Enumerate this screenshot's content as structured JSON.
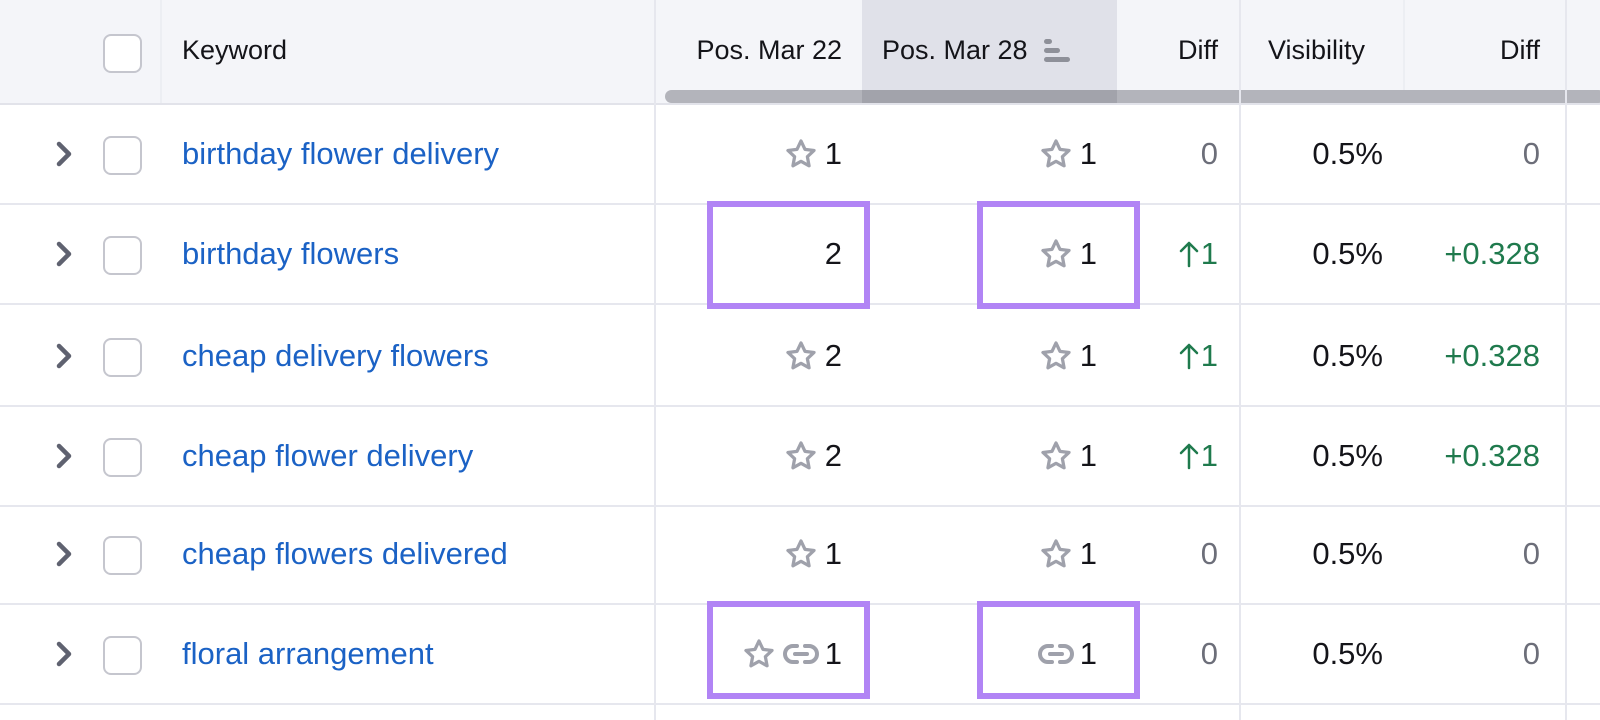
{
  "header": {
    "keyword": "Keyword",
    "pos_mar22": "Pos. Mar 22",
    "pos_mar28": "Pos. Mar 28",
    "diff": "Diff",
    "visibility": "Visibility",
    "vis_diff": "Diff",
    "sorted_column": "Pos. Mar 28"
  },
  "colors": {
    "link": "#1b62c5",
    "positive": "#1f7a4d",
    "highlight": "#b184f5",
    "icon": "#9fa1ab"
  },
  "rows": [
    {
      "keyword": "birthday flower delivery",
      "pos22": "1",
      "pos22_icons": [
        "star-icon"
      ],
      "pos28": "1",
      "pos28_icons": [
        "star-icon"
      ],
      "diff": "0",
      "diff_up": false,
      "visibility": "0.5%",
      "vis_diff": "0",
      "highlighted": false
    },
    {
      "keyword": "birthday flowers",
      "pos22": "2",
      "pos22_icons": [],
      "pos28": "1",
      "pos28_icons": [
        "star-icon"
      ],
      "diff": "1",
      "diff_up": true,
      "visibility": "0.5%",
      "vis_diff": "+0.328",
      "highlighted": true
    },
    {
      "keyword": "cheap delivery flowers",
      "pos22": "2",
      "pos22_icons": [
        "star-icon"
      ],
      "pos28": "1",
      "pos28_icons": [
        "star-icon"
      ],
      "diff": "1",
      "diff_up": true,
      "visibility": "0.5%",
      "vis_diff": "+0.328",
      "highlighted": false
    },
    {
      "keyword": "cheap flower delivery",
      "pos22": "2",
      "pos22_icons": [
        "star-icon"
      ],
      "pos28": "1",
      "pos28_icons": [
        "star-icon"
      ],
      "diff": "1",
      "diff_up": true,
      "visibility": "0.5%",
      "vis_diff": "+0.328",
      "highlighted": false
    },
    {
      "keyword": "cheap flowers delivered",
      "pos22": "1",
      "pos22_icons": [
        "star-icon"
      ],
      "pos28": "1",
      "pos28_icons": [
        "star-icon"
      ],
      "diff": "0",
      "diff_up": false,
      "visibility": "0.5%",
      "vis_diff": "0",
      "highlighted": false
    },
    {
      "keyword": "floral arrangement",
      "pos22": "1",
      "pos22_icons": [
        "star-icon",
        "link-icon"
      ],
      "pos28": "1",
      "pos28_icons": [
        "link-icon"
      ],
      "diff": "0",
      "diff_up": false,
      "visibility": "0.5%",
      "vis_diff": "0",
      "highlighted": true
    }
  ]
}
